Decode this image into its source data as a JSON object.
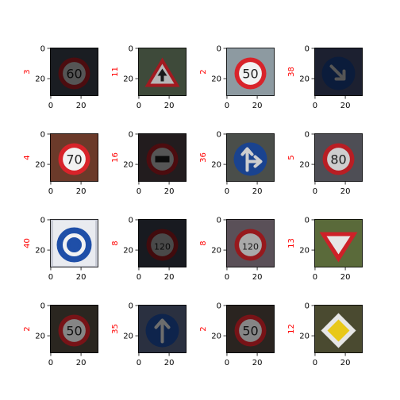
{
  "chart_data": {
    "type": "image_grid",
    "title": "",
    "rows": 4,
    "cols": 4,
    "image_size": [
      32,
      32
    ],
    "x_ticks": [
      0,
      20
    ],
    "y_ticks": [
      0,
      20
    ],
    "label_color": "#ff0000",
    "panels": [
      {
        "label": "3",
        "sign": "speed_limit",
        "text": "60",
        "bg": "#1a1d22",
        "bright": 0.35
      },
      {
        "label": "11",
        "sign": "warning_triangle",
        "text": "",
        "bg": "#3e4a3a",
        "bright": 0.75
      },
      {
        "label": "2",
        "sign": "speed_limit",
        "text": "50",
        "bg": "#8d9aa1",
        "bright": 1.0
      },
      {
        "label": "38",
        "sign": "blue_arrow_down_right",
        "text": "",
        "bg": "#1c2030",
        "bright": 0.35
      },
      {
        "label": "4",
        "sign": "speed_limit",
        "text": "70",
        "bg": "#6b3a2a",
        "bright": 1.0
      },
      {
        "label": "16",
        "sign": "no_trucks",
        "text": "",
        "bg": "#221c1e",
        "bright": 0.35
      },
      {
        "label": "36",
        "sign": "blue_straight_right",
        "text": "",
        "bg": "#4a4e4a",
        "bright": 0.85
      },
      {
        "label": "5",
        "sign": "speed_limit",
        "text": "80",
        "bg": "#4e4e55",
        "bright": 0.85
      },
      {
        "label": "40",
        "sign": "roundabout",
        "text": "",
        "bg": "#c9ccd6",
        "bright": 1.0
      },
      {
        "label": "8",
        "sign": "speed_limit",
        "text": "120",
        "bg": "#181a20",
        "bright": 0.3
      },
      {
        "label": "8",
        "sign": "speed_limit",
        "text": "120",
        "bg": "#5a5058",
        "bright": 0.7
      },
      {
        "label": "13",
        "sign": "yield",
        "text": "",
        "bg": "#5a6a3a",
        "bright": 0.95
      },
      {
        "label": "2",
        "sign": "speed_limit",
        "text": "50",
        "bg": "#2a2620",
        "bright": 0.55
      },
      {
        "label": "35",
        "sign": "blue_arrow_up",
        "text": "",
        "bg": "#2a3040",
        "bright": 0.45
      },
      {
        "label": "2",
        "sign": "speed_limit",
        "text": "50",
        "bg": "#2a2420",
        "bright": 0.55
      },
      {
        "label": "12",
        "sign": "priority_road",
        "text": "",
        "bg": "#4a4a30",
        "bright": 0.95
      }
    ]
  }
}
